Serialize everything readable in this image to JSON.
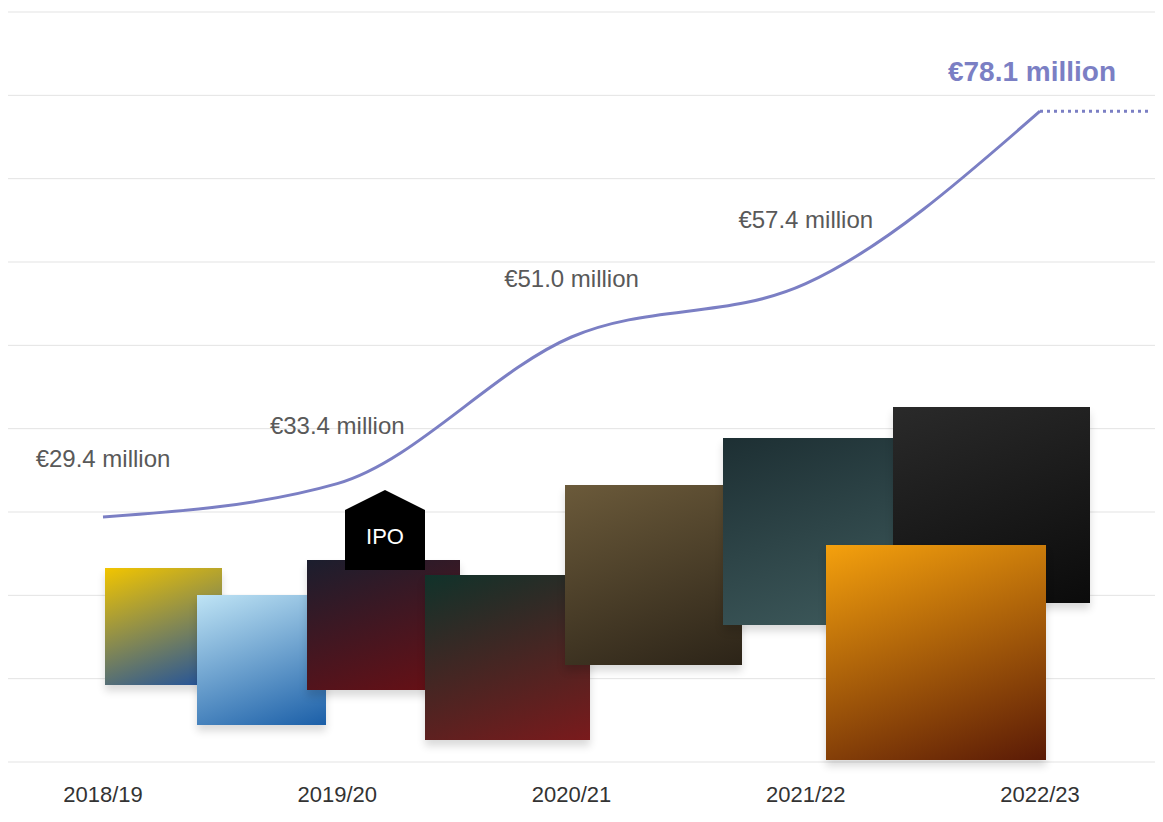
{
  "chart_data": {
    "type": "line",
    "categories": [
      "2018/19",
      "2019/20",
      "2020/21",
      "2021/22",
      "2022/23"
    ],
    "values": [
      29.4,
      33.4,
      51.0,
      57.4,
      78.1
    ],
    "value_labels": [
      "€29.4 million",
      "€33.4 million",
      "€51.0 million",
      "€57.4 million",
      "€78.1 million"
    ],
    "data_labels": true,
    "color": "#7b7fc4",
    "ylim": [
      0,
      90
    ],
    "yticks": [
      0,
      10,
      20,
      30,
      40,
      50,
      60,
      70,
      80,
      90
    ],
    "grid": true,
    "tick_labels": "x",
    "annotations": [
      {
        "text": "IPO"
      }
    ]
  }
}
